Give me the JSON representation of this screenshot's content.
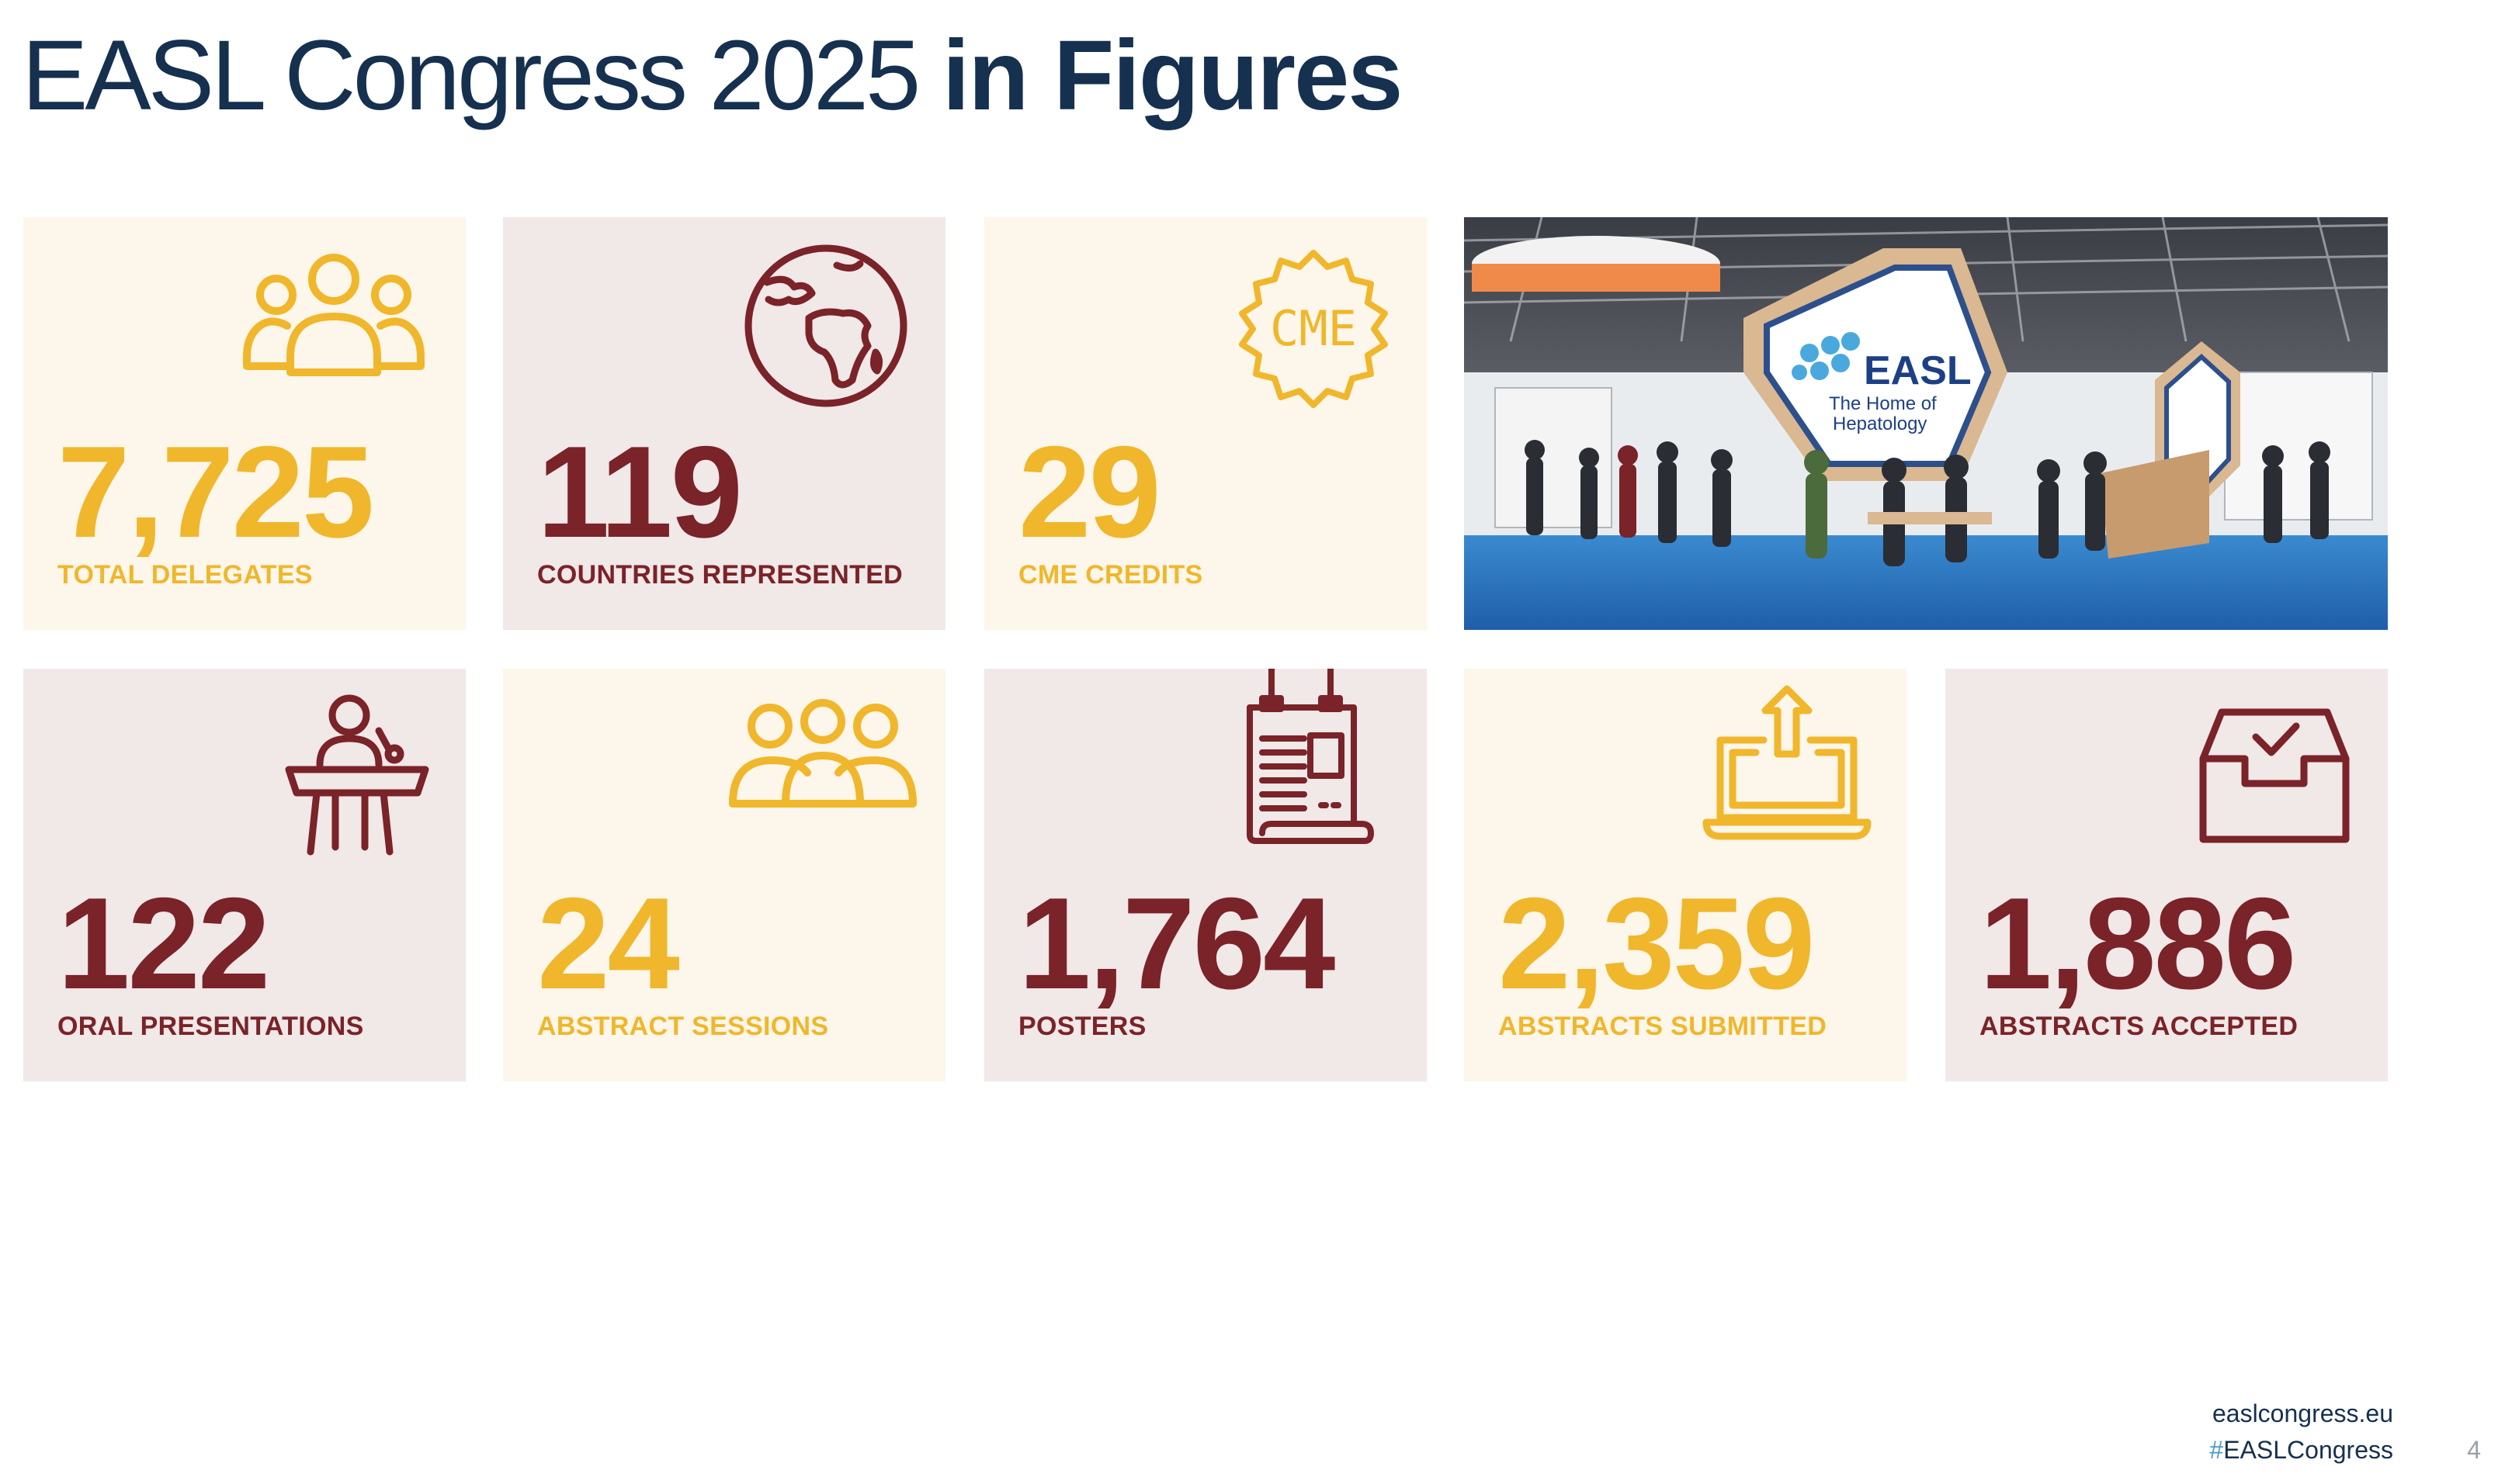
{
  "title": {
    "light": "EASL Congress 2025",
    "bold": "in Figures"
  },
  "colors": {
    "navy": "#16304f",
    "gold": "#f0b72c",
    "maroon": "#7a2328",
    "tile_cream": "#fdf6ea",
    "tile_blush": "#f1e8e8"
  },
  "stats": [
    {
      "value": "7,725",
      "label": "TOTAL DELEGATES",
      "icon": "people-group-icon"
    },
    {
      "value": "119",
      "label": "COUNTRIES REPRESENTED",
      "icon": "globe-icon"
    },
    {
      "value": "29",
      "label": "CME CREDITS",
      "icon": "cme-badge-icon",
      "icon_text": "CME"
    },
    {
      "value": "122",
      "label": "ORAL PRESENTATIONS",
      "icon": "speaker-podium-icon"
    },
    {
      "value": "24",
      "label": "ABSTRACT SESSIONS",
      "icon": "audience-icon"
    },
    {
      "value": "1,764",
      "label": "POSTERS",
      "icon": "poster-icon"
    },
    {
      "value": "2,359",
      "label": "ABSTRACTS SUBMITTED",
      "icon": "laptop-upload-icon"
    },
    {
      "value": "1,886",
      "label": "ABSTRACTS ACCEPTED",
      "icon": "inbox-check-icon"
    }
  ],
  "photo": {
    "sign_brand": "EASL",
    "sign_tagline_1": "The Home of",
    "sign_tagline_2": "Hepatology"
  },
  "footer": {
    "url": "easlcongress.eu",
    "hashtag_symbol": "#",
    "hashtag_text": "EASLCongress",
    "page_number": "4"
  }
}
